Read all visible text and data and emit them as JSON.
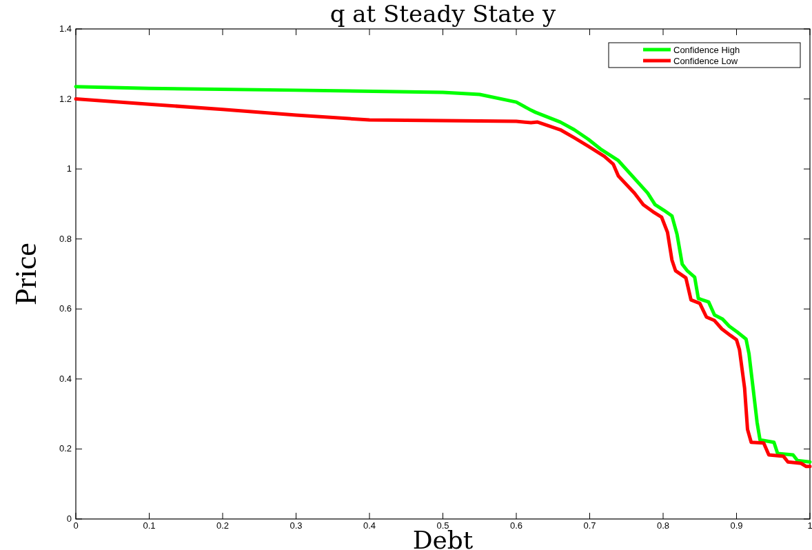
{
  "chart_data": {
    "type": "line",
    "title": "q at Steady State y",
    "xlabel": "Debt",
    "ylabel": "Price",
    "xlim": [
      0,
      1
    ],
    "ylim": [
      0,
      1.4
    ],
    "xticks": [
      0,
      0.1,
      0.2,
      0.3,
      0.4,
      0.5,
      0.6,
      0.7,
      0.8,
      0.9,
      1
    ],
    "yticks": [
      0,
      0.2,
      0.4,
      0.6,
      0.8,
      1,
      1.2,
      1.4
    ],
    "legend": "top right",
    "grid": false,
    "line_style": "solid",
    "marker": "none",
    "series": [
      {
        "name": "Confidence High",
        "color": "#00ff00",
        "x": [
          0,
          0.1,
          0.3,
          0.5,
          0.55,
          0.6,
          0.62,
          0.626,
          0.66,
          0.679,
          0.698,
          0.716,
          0.739,
          0.779,
          0.789,
          0.801,
          0.812,
          0.819,
          0.826,
          0.833,
          0.843,
          0.848,
          0.862,
          0.87,
          0.881,
          0.89,
          0.901,
          0.913,
          0.917,
          0.923,
          0.928,
          0.932,
          0.951,
          0.956,
          0.977,
          0.983,
          1
        ],
        "values": [
          1.235,
          1.23,
          1.225,
          1.219,
          1.213,
          1.191,
          1.168,
          1.162,
          1.134,
          1.112,
          1.085,
          1.055,
          1.024,
          0.931,
          0.898,
          0.882,
          0.866,
          0.813,
          0.728,
          0.709,
          0.691,
          0.63,
          0.62,
          0.583,
          0.571,
          0.551,
          0.534,
          0.514,
          0.472,
          0.366,
          0.276,
          0.226,
          0.219,
          0.187,
          0.183,
          0.167,
          0.163
        ]
      },
      {
        "name": "Confidence Low",
        "color": "#ff0000",
        "x": [
          0,
          0.1,
          0.2,
          0.3,
          0.4,
          0.5,
          0.6,
          0.62,
          0.629,
          0.66,
          0.679,
          0.698,
          0.72,
          0.732,
          0.739,
          0.761,
          0.773,
          0.786,
          0.798,
          0.806,
          0.812,
          0.817,
          0.831,
          0.838,
          0.85,
          0.859,
          0.87,
          0.88,
          0.892,
          0.9,
          0.904,
          0.911,
          0.915,
          0.92,
          0.937,
          0.944,
          0.964,
          0.97,
          0.988,
          0.995,
          1
        ],
        "values": [
          1.2,
          1.185,
          1.17,
          1.154,
          1.14,
          1.138,
          1.136,
          1.132,
          1.134,
          1.112,
          1.089,
          1.065,
          1.036,
          1.014,
          0.98,
          0.931,
          0.898,
          0.878,
          0.862,
          0.819,
          0.74,
          0.709,
          0.689,
          0.626,
          0.616,
          0.577,
          0.567,
          0.543,
          0.524,
          0.512,
          0.484,
          0.374,
          0.256,
          0.219,
          0.217,
          0.183,
          0.179,
          0.163,
          0.159,
          0.15,
          0.15
        ]
      }
    ]
  }
}
